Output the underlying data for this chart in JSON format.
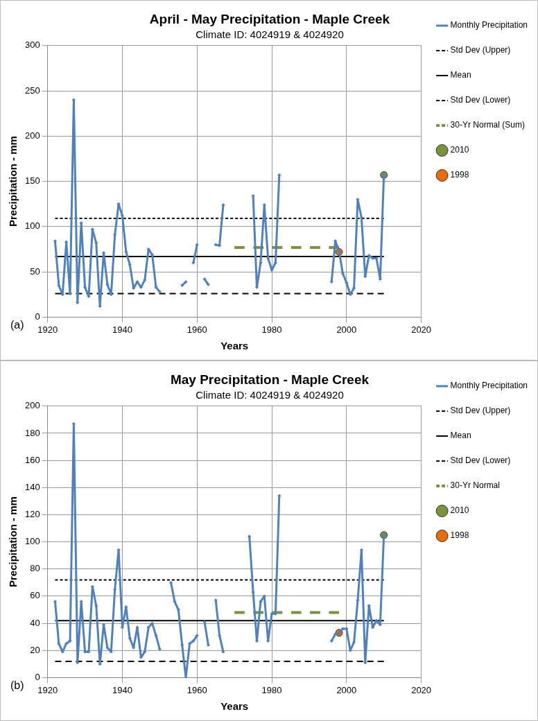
{
  "chart_data": [
    {
      "type": "line",
      "title": "April - May Precipitation - Maple Creek",
      "subtitle": "Climate ID: 4024919 & 4024920",
      "xlabel": "Years",
      "ylabel": "Precipitation - mm",
      "annotations": [
        "(a)"
      ],
      "xlim": [
        1920,
        2020
      ],
      "xticks": [
        1920,
        1940,
        1960,
        1980,
        2000,
        2020
      ],
      "ylim": [
        0,
        300
      ],
      "yticks": [
        0,
        50,
        100,
        150,
        200,
        250,
        300
      ],
      "grid": true,
      "legend": "right",
      "series": [
        {
          "name": "Monthly Precipitation",
          "color": "#4f81bd",
          "marker": "diamond",
          "line_style": "solid",
          "x": [
            1922,
            1923,
            1924,
            1925,
            1926,
            1927,
            1928,
            1929,
            1930,
            1931,
            1932,
            1933,
            1934,
            1935,
            1936,
            1937,
            1938,
            1939,
            1940,
            1941,
            1942,
            1943,
            1944,
            1945,
            1946,
            1947,
            1948,
            1949,
            1950,
            1951,
            1956,
            1957,
            1958,
            1959,
            1960,
            1961,
            1962,
            1963,
            1964,
            1965,
            1966,
            1967,
            1968,
            1975,
            1976,
            1977,
            1978,
            1979,
            1980,
            1981,
            1982,
            1983,
            1996,
            1997,
            1998,
            1999,
            2000,
            2001,
            2002,
            2003,
            2004,
            2005,
            2006,
            2007,
            2008,
            2009,
            2010
          ],
          "values": [
            84,
            35,
            25,
            83,
            26,
            240,
            16,
            104,
            33,
            23,
            97,
            82,
            12,
            71,
            36,
            25,
            91,
            125,
            112,
            72,
            58,
            32,
            39,
            33,
            41,
            75,
            69,
            33,
            28,
            null,
            35,
            39,
            null,
            60,
            80,
            null,
            42,
            36,
            null,
            80,
            79,
            124,
            null,
            134,
            33,
            60,
            124,
            65,
            52,
            60,
            157,
            null,
            39,
            84,
            73,
            48,
            38,
            25,
            32,
            130,
            110,
            45,
            68,
            65,
            65,
            42,
            157
          ]
        },
        {
          "name": "Std Dev (Upper)",
          "color": "#000000",
          "marker": "none",
          "line_style": "dotted",
          "x": [
            1922,
            2010
          ],
          "values": [
            109,
            109
          ]
        },
        {
          "name": "Mean",
          "color": "#000000",
          "marker": "none",
          "line_style": "solid",
          "x": [
            1922,
            2010
          ],
          "values": [
            67,
            67
          ]
        },
        {
          "name": "Std Dev (Lower)",
          "color": "#000000",
          "marker": "none",
          "line_style": "dashed",
          "x": [
            1922,
            2010
          ],
          "values": [
            26,
            26
          ]
        },
        {
          "name": "30-Yr Normal (Sum)",
          "color": "#77933c",
          "marker": "none",
          "line_style": "dashed",
          "x": [
            1970,
            1998
          ],
          "values": [
            77,
            77
          ]
        },
        {
          "name": "2010",
          "type": "scatter",
          "color": "#77933c",
          "marker": "circle",
          "x": [
            2010
          ],
          "values": [
            157
          ]
        },
        {
          "name": "1998",
          "type": "scatter",
          "color": "#e46c0a",
          "marker": "circle",
          "x": [
            1998
          ],
          "values": [
            72
          ]
        }
      ]
    },
    {
      "type": "line",
      "title": "May Precipitation - Maple Creek",
      "subtitle": "Climate ID: 4024919 & 4024920",
      "xlabel": "Years",
      "ylabel": "Precipitation - mm",
      "annotations": [
        "(b)"
      ],
      "xlim": [
        1920,
        2020
      ],
      "xticks": [
        1920,
        1940,
        1960,
        1980,
        2000,
        2020
      ],
      "ylim": [
        0,
        200
      ],
      "yticks": [
        0,
        20,
        40,
        60,
        80,
        100,
        120,
        140,
        160,
        180,
        200
      ],
      "grid": true,
      "legend": "right",
      "series": [
        {
          "name": "Monthly Precipitation",
          "color": "#4f81bd",
          "marker": "diamond",
          "line_style": "solid",
          "x": [
            1922,
            1923,
            1924,
            1925,
            1926,
            1927,
            1928,
            1929,
            1930,
            1931,
            1932,
            1933,
            1934,
            1935,
            1936,
            1937,
            1938,
            1939,
            1940,
            1941,
            1942,
            1943,
            1944,
            1945,
            1946,
            1947,
            1948,
            1949,
            1950,
            1951,
            1953,
            1954,
            1955,
            1956,
            1957,
            1958,
            1959,
            1960,
            1961,
            1962,
            1963,
            1964,
            1965,
            1966,
            1967,
            1968,
            1974,
            1975,
            1976,
            1977,
            1978,
            1979,
            1980,
            1981,
            1982,
            1983,
            1996,
            1997,
            1998,
            1999,
            2000,
            2001,
            2002,
            2003,
            2004,
            2005,
            2006,
            2007,
            2008,
            2009,
            2010
          ],
          "values": [
            56,
            25,
            19,
            25,
            27,
            187,
            11,
            56,
            19,
            19,
            67,
            53,
            10,
            39,
            22,
            19,
            65,
            94,
            37,
            52,
            29,
            22,
            37,
            15,
            19,
            37,
            40,
            31,
            21,
            null,
            70,
            56,
            50,
            24,
            0,
            25,
            27,
            31,
            null,
            41,
            24,
            null,
            57,
            31,
            19,
            null,
            104,
            63,
            27,
            56,
            60,
            27,
            47,
            47,
            134,
            null,
            27,
            32,
            33,
            36,
            36,
            20,
            26,
            57,
            94,
            11,
            53,
            37,
            42,
            39,
            105
          ]
        },
        {
          "name": "Std Dev (Upper)",
          "color": "#000000",
          "marker": "none",
          "line_style": "dotted",
          "x": [
            1922,
            2010
          ],
          "values": [
            72,
            72
          ]
        },
        {
          "name": "Mean",
          "color": "#000000",
          "marker": "none",
          "line_style": "solid",
          "x": [
            1922,
            2010
          ],
          "values": [
            42,
            42
          ]
        },
        {
          "name": "Std Dev (Lower)",
          "color": "#000000",
          "marker": "none",
          "line_style": "dashed",
          "x": [
            1922,
            2010
          ],
          "values": [
            12,
            12
          ]
        },
        {
          "name": "30-Yr Normal",
          "color": "#77933c",
          "marker": "none",
          "line_style": "dashed",
          "x": [
            1970,
            1998
          ],
          "values": [
            48,
            48
          ]
        },
        {
          "name": "2010",
          "type": "scatter",
          "color": "#77933c",
          "marker": "circle",
          "x": [
            2010
          ],
          "values": [
            105
          ]
        },
        {
          "name": "1998",
          "type": "scatter",
          "color": "#e46c0a",
          "marker": "circle",
          "x": [
            1998
          ],
          "values": [
            33
          ]
        }
      ]
    }
  ]
}
